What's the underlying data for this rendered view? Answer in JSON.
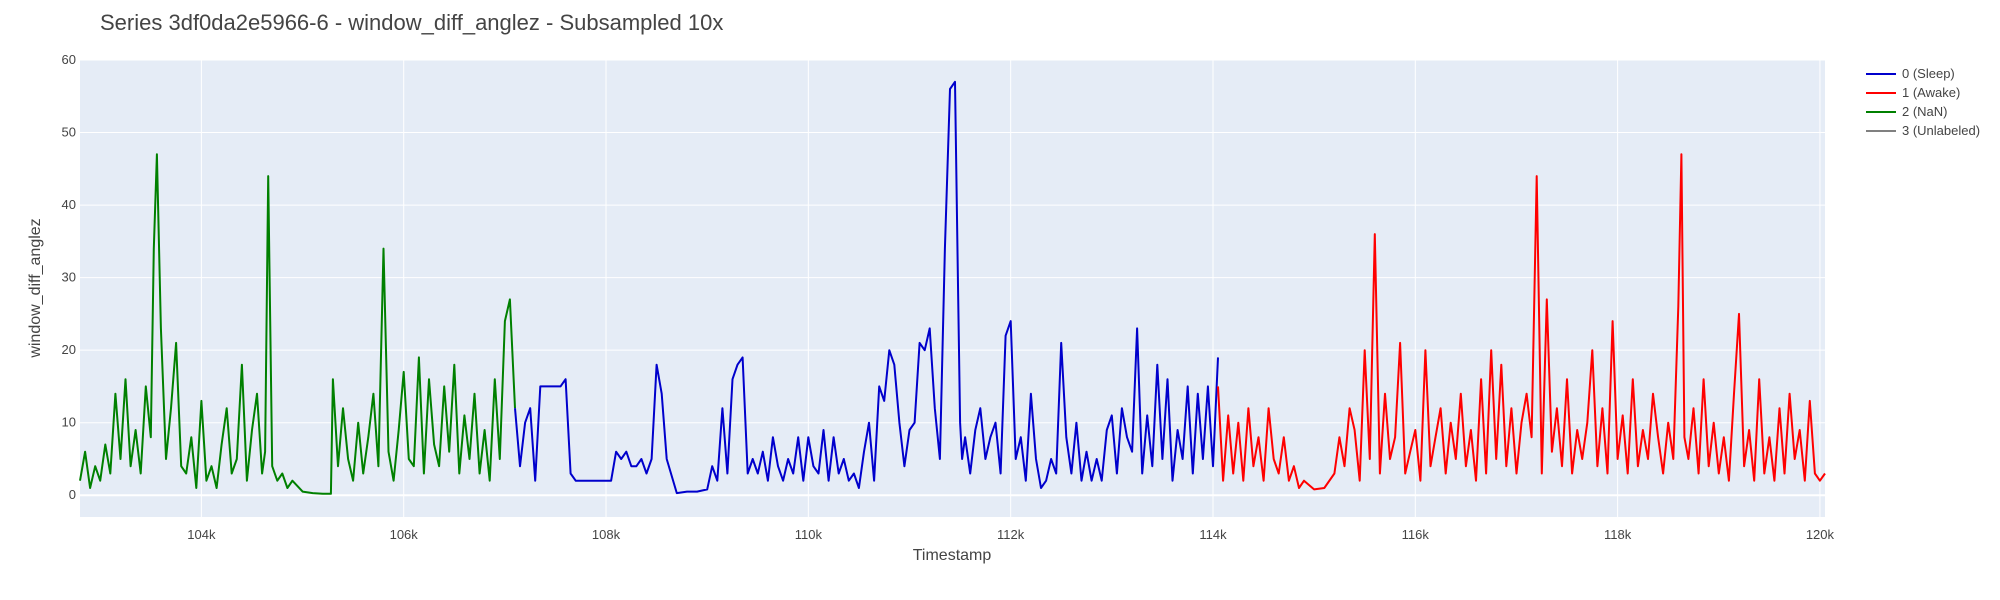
{
  "chart_data": {
    "type": "line",
    "title": "Series 3df0da2e5966-6 - window_diff_anglez - Subsampled 10x",
    "xlabel": "Timestamp",
    "ylabel": "window_diff_anglez",
    "xlim": [
      102800,
      120050
    ],
    "ylim": [
      -3,
      60
    ],
    "x_ticks": [
      104000,
      106000,
      108000,
      110000,
      112000,
      114000,
      116000,
      118000,
      120000
    ],
    "x_tick_labels": [
      "104k",
      "106k",
      "108k",
      "110k",
      "112k",
      "114k",
      "116k",
      "118k",
      "120k"
    ],
    "y_ticks": [
      0,
      10,
      20,
      30,
      40,
      50,
      60
    ],
    "y_tick_labels": [
      "0",
      "10",
      "20",
      "30",
      "40",
      "50",
      "60"
    ],
    "grid": true,
    "legend_position": "top-right",
    "legend": [
      {
        "label": "0 (Sleep)",
        "color": "#0000cc"
      },
      {
        "label": "1 (Awake)",
        "color": "#ff0000"
      },
      {
        "label": "2 (NaN)",
        "color": "#008000"
      },
      {
        "label": "3 (Unlabeled)",
        "color": "#808080"
      }
    ],
    "series": [
      {
        "color": "#008000",
        "x": [
          102800,
          102850,
          102900,
          102950,
          103000,
          103050,
          103100,
          103150,
          103200,
          103250,
          103300,
          103350,
          103400,
          103450,
          103500,
          103530,
          103560,
          103600,
          103650,
          103700,
          103750,
          103800,
          103850,
          103900,
          103950,
          104000,
          104050,
          104100,
          104150,
          104200,
          104250,
          104300,
          104350,
          104400,
          104450,
          104500,
          104550,
          104600,
          104630,
          104660,
          104700,
          104750,
          104800,
          104850,
          104900,
          105000,
          105100,
          105200,
          105280,
          105300,
          105350,
          105400,
          105450,
          105500,
          105550,
          105600,
          105650,
          105700,
          105750,
          105800,
          105850,
          105900,
          105950,
          106000,
          106050,
          106100,
          106150,
          106200,
          106250,
          106300,
          106350,
          106400,
          106450,
          106500,
          106550,
          106600,
          106650,
          106700,
          106750,
          106800,
          106850,
          106900,
          106950,
          107000,
          107050,
          107100
        ],
        "y": [
          2,
          6,
          1,
          4,
          2,
          7,
          3,
          14,
          5,
          16,
          4,
          9,
          3,
          15,
          8,
          34,
          47,
          23,
          5,
          12,
          21,
          4,
          3,
          8,
          1,
          13,
          2,
          4,
          1,
          7,
          12,
          3,
          5,
          18,
          2,
          9,
          14,
          3,
          6,
          44,
          4,
          2,
          3,
          1,
          2,
          0.5,
          0.3,
          0.2,
          0.2,
          16,
          4,
          12,
          5,
          2,
          10,
          3,
          8,
          14,
          4,
          34,
          6,
          2,
          9,
          17,
          5,
          4,
          19,
          3,
          16,
          7,
          4,
          15,
          6,
          18,
          3,
          11,
          5,
          14,
          3,
          9,
          2,
          16,
          5,
          24,
          27,
          12
        ]
      },
      {
        "color": "#0000cc",
        "x": [
          107100,
          107150,
          107200,
          107250,
          107300,
          107350,
          107400,
          107450,
          107500,
          107550,
          107600,
          107650,
          107700,
          107800,
          107900,
          108000,
          108050,
          108100,
          108150,
          108200,
          108250,
          108300,
          108350,
          108400,
          108450,
          108500,
          108550,
          108600,
          108700,
          108800,
          108900,
          109000,
          109050,
          109100,
          109150,
          109200,
          109250,
          109300,
          109350,
          109400,
          109450,
          109500,
          109550,
          109600,
          109650,
          109700,
          109750,
          109800,
          109850,
          109900,
          109950,
          110000,
          110050,
          110100,
          110150,
          110200,
          110250,
          110300,
          110350,
          110400,
          110450,
          110500,
          110550,
          110600,
          110650,
          110700,
          110750,
          110800,
          110850,
          110900,
          110950,
          111000,
          111050,
          111100,
          111150,
          111200,
          111250,
          111300,
          111350,
          111400,
          111450,
          111480,
          111500,
          111520,
          111550,
          111600,
          111650,
          111700,
          111750,
          111800,
          111850,
          111900,
          111950,
          112000,
          112050,
          112100,
          112150,
          112200,
          112250,
          112300,
          112350,
          112400,
          112450,
          112500,
          112550,
          112600,
          112650,
          112700,
          112750,
          112800,
          112850,
          112900,
          112950,
          113000,
          113050,
          113100,
          113150,
          113200,
          113250,
          113300,
          113350,
          113400,
          113450,
          113500,
          113550,
          113600,
          113650,
          113700,
          113750,
          113800,
          113850,
          113900,
          113950,
          114000,
          114050
        ],
        "y": [
          12,
          4,
          10,
          12,
          2,
          15,
          15,
          15,
          15,
          15,
          16,
          3,
          2,
          2,
          2,
          2,
          2,
          6,
          5,
          6,
          4,
          4,
          5,
          3,
          5,
          18,
          14,
          5,
          0.3,
          0.5,
          0.5,
          0.8,
          4,
          2,
          12,
          3,
          16,
          18,
          19,
          3,
          5,
          3,
          6,
          2,
          8,
          4,
          2,
          5,
          3,
          8,
          2,
          8,
          4,
          3,
          9,
          2,
          8,
          3,
          5,
          2,
          3,
          1,
          6,
          10,
          2,
          15,
          13,
          20,
          18,
          10,
          4,
          9,
          10,
          21,
          20,
          23,
          12,
          5,
          34,
          56,
          57,
          28,
          10,
          5,
          8,
          3,
          9,
          12,
          5,
          8,
          10,
          3,
          22,
          24,
          5,
          8,
          2,
          14,
          5,
          1,
          2,
          5,
          3,
          21,
          8,
          3,
          10,
          2,
          6,
          2,
          5,
          2,
          9,
          11,
          3,
          12,
          8,
          6,
          23,
          3,
          11,
          4,
          18,
          5,
          16,
          2,
          9,
          5,
          15,
          3,
          14,
          5,
          15,
          4,
          19
        ]
      },
      {
        "color": "#ff0000",
        "x": [
          114050,
          114100,
          114150,
          114200,
          114250,
          114300,
          114350,
          114400,
          114450,
          114500,
          114550,
          114600,
          114650,
          114700,
          114750,
          114800,
          114850,
          114900,
          115000,
          115100,
          115200,
          115250,
          115300,
          115350,
          115400,
          115450,
          115500,
          115550,
          115600,
          115650,
          115700,
          115750,
          115800,
          115850,
          115900,
          115950,
          116000,
          116050,
          116100,
          116150,
          116200,
          116250,
          116300,
          116350,
          116400,
          116450,
          116500,
          116550,
          116600,
          116650,
          116700,
          116750,
          116800,
          116850,
          116900,
          116950,
          117000,
          117050,
          117100,
          117150,
          117200,
          117250,
          117300,
          117350,
          117400,
          117450,
          117500,
          117550,
          117600,
          117650,
          117700,
          117750,
          117800,
          117850,
          117900,
          117950,
          118000,
          118050,
          118100,
          118150,
          118200,
          118250,
          118300,
          118350,
          118400,
          118450,
          118500,
          118550,
          118600,
          118630,
          118660,
          118700,
          118750,
          118800,
          118850,
          118900,
          118950,
          119000,
          119050,
          119100,
          119150,
          119200,
          119250,
          119300,
          119350,
          119400,
          119450,
          119500,
          119550,
          119600,
          119650,
          119700,
          119750,
          119800,
          119850,
          119900,
          119950,
          120000,
          120050
        ],
        "y": [
          15,
          2,
          11,
          3,
          10,
          2,
          12,
          4,
          8,
          2,
          12,
          5,
          3,
          8,
          2,
          4,
          1,
          2,
          0.8,
          1,
          3,
          8,
          4,
          12,
          9,
          2,
          20,
          5,
          36,
          3,
          14,
          5,
          8,
          21,
          3,
          6,
          9,
          2,
          20,
          4,
          8,
          12,
          3,
          10,
          5,
          14,
          4,
          9,
          2,
          16,
          3,
          20,
          5,
          18,
          4,
          12,
          3,
          10,
          14,
          8,
          44,
          3,
          27,
          6,
          12,
          4,
          16,
          3,
          9,
          5,
          10,
          20,
          4,
          12,
          3,
          24,
          5,
          11,
          3,
          16,
          4,
          9,
          5,
          14,
          8,
          3,
          10,
          5,
          26,
          47,
          8,
          5,
          12,
          3,
          16,
          4,
          10,
          3,
          8,
          2,
          14,
          25,
          4,
          9,
          2,
          16,
          3,
          8,
          2,
          12,
          3,
          14,
          5,
          9,
          2,
          13,
          3,
          2,
          3
        ]
      }
    ]
  }
}
